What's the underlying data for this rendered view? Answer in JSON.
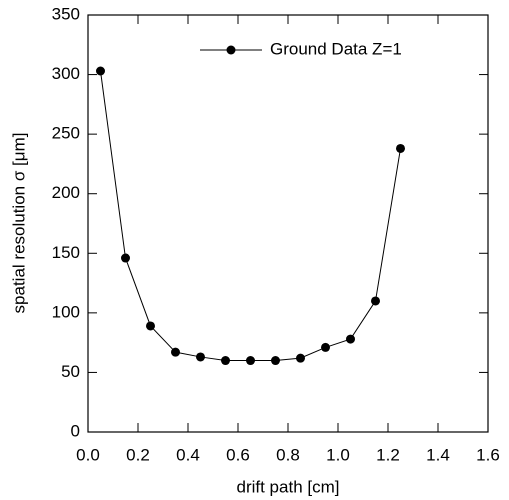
{
  "chart_data": {
    "type": "line",
    "x_label": "drift path [cm]",
    "y_label": "spatial resolution σ  [μm]",
    "x": [
      0.05,
      0.15,
      0.25,
      0.35,
      0.45,
      0.55,
      0.65,
      0.75,
      0.85,
      0.95,
      1.05,
      1.15,
      1.25
    ],
    "series": [
      {
        "name": "Ground Data Z=1",
        "color": "#000000",
        "values": [
          303,
          146,
          89,
          67,
          63,
          60,
          60,
          60,
          62,
          71,
          78,
          110,
          238
        ]
      }
    ],
    "xlim": [
      0,
      1.6
    ],
    "xticks": [
      {
        "value": 0,
        "label": "0.0"
      },
      0.2,
      0.4,
      0.6,
      0.8,
      {
        "value": 1,
        "label": "1.0"
      },
      1.2,
      1.4,
      1.6
    ],
    "ylim": [
      0,
      350
    ],
    "yticks": [
      0,
      50,
      100,
      150,
      200,
      250,
      300,
      350
    ],
    "legend": "upper-right"
  }
}
